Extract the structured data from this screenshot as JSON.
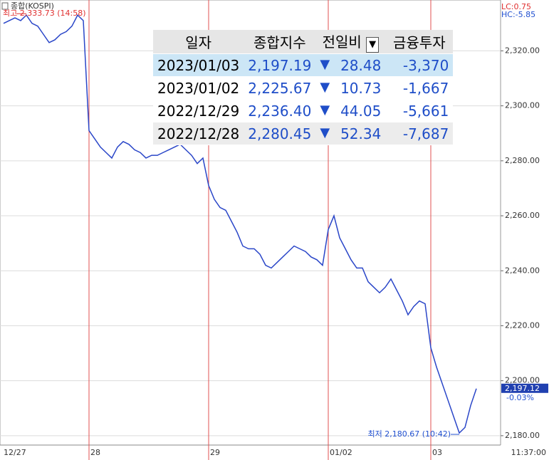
{
  "chart_data": {
    "type": "line",
    "series": [
      {
        "name": "종합(KOSPI)",
        "color": "#2a46c8",
        "values": [
          2330,
          2331,
          2332,
          2331,
          2333,
          2330,
          2329,
          2326,
          2323,
          2324,
          2326,
          2327,
          2329,
          2333,
          2331,
          2291,
          2288,
          2285,
          2283,
          2281,
          2285,
          2287,
          2286,
          2284,
          2283,
          2281,
          2282,
          2282,
          2283,
          2284,
          2285,
          2286,
          2284,
          2282,
          2279,
          2281,
          2271,
          2266,
          2263,
          2262,
          2258,
          2254,
          2249,
          2248,
          2248,
          2246,
          2242,
          2241,
          2243,
          2245,
          2247,
          2249,
          2248,
          2247,
          2245,
          2244,
          2242,
          2255,
          2260,
          2252,
          2248,
          2244,
          2241,
          2241,
          2236,
          2234,
          2232,
          2234,
          2237,
          2233,
          2229,
          2224,
          2227,
          2229,
          2228,
          2212,
          2205,
          2199,
          2193,
          2187,
          2181,
          2183,
          2191,
          2197.12
        ]
      }
    ],
    "categories": [
      "12/27",
      null,
      null,
      null,
      null,
      null,
      null,
      null,
      null,
      null,
      null,
      null,
      null,
      null,
      null,
      "28",
      null,
      null,
      null,
      null,
      null,
      null,
      null,
      null,
      null,
      null,
      null,
      null,
      null,
      null,
      null,
      null,
      null,
      null,
      null,
      null,
      "29",
      null,
      null,
      null,
      null,
      null,
      null,
      null,
      null,
      null,
      null,
      null,
      null,
      null,
      null,
      null,
      null,
      null,
      null,
      null,
      null,
      "01/02",
      null,
      null,
      null,
      null,
      null,
      null,
      null,
      null,
      null,
      null,
      null,
      null,
      null,
      null,
      null,
      null,
      null,
      "03",
      null,
      null,
      null,
      null,
      null,
      null,
      null,
      null
    ],
    "time_label": "11:37:00",
    "ylim": [
      2176.6,
      2338.5
    ],
    "yticks": [
      {
        "value": 2180,
        "label": "2,180.00"
      },
      {
        "value": 2200,
        "label": "2,200.00"
      },
      {
        "value": 2220,
        "label": "2,220.00"
      },
      {
        "value": 2240,
        "label": "2,240.00"
      },
      {
        "value": 2260,
        "label": "2,260.00"
      },
      {
        "value": 2280,
        "label": "2,280.00"
      },
      {
        "value": 2300,
        "label": "2,300.00"
      },
      {
        "value": 2320,
        "label": "2,320.00"
      }
    ],
    "grid": true,
    "high_annotation": "최고 2,333.73 (14:58)",
    "low_annotation": "최저 2,180.67 (10:42)",
    "last_label": "2,197.12",
    "last_change": "-0.03%",
    "lc_label": "LC:0.75",
    "hc_label": "HC:-5.85",
    "day_line_color": "#e05050"
  },
  "table": {
    "header": [
      "일자",
      "종합지수",
      "전일비",
      "금융투자"
    ],
    "rows": [
      [
        "2023/01/03",
        "2,197.19",
        "28.48",
        "-3,370"
      ],
      [
        "2023/01/02",
        "2,225.67",
        "10.73",
        "-1,667"
      ],
      [
        "2022/12/29",
        "2,236.40",
        "44.05",
        "-5,661"
      ],
      [
        "2022/12/28",
        "2,280.45",
        "52.34",
        "-7,687"
      ]
    ]
  }
}
